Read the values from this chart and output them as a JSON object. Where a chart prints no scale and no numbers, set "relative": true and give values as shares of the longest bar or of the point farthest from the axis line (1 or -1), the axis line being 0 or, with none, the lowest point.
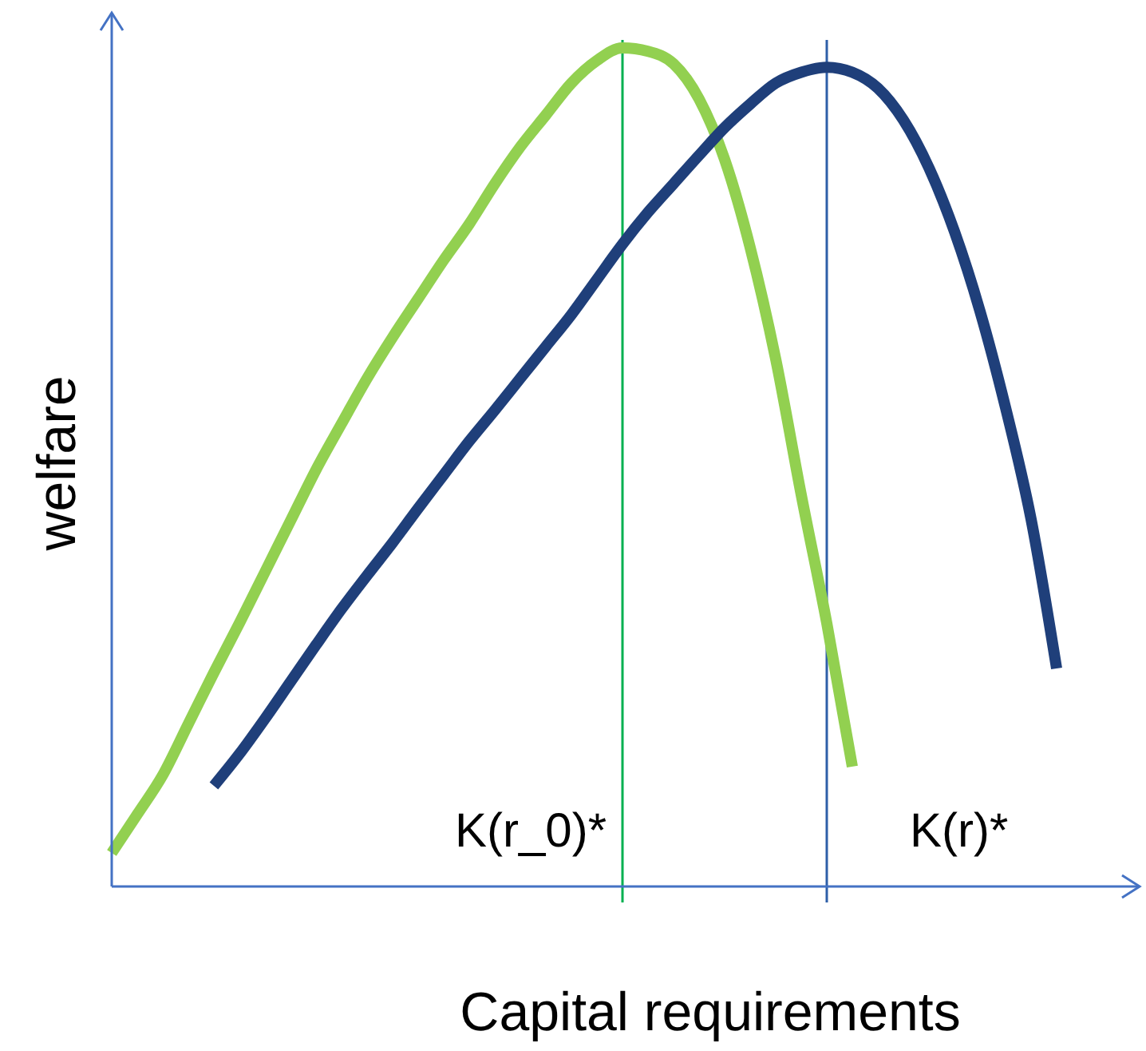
{
  "chart_data": {
    "type": "line",
    "relative": true,
    "xlabel": "Capital requirements",
    "ylabel": "welfare",
    "line_style": "solid",
    "categories": [
      null,
      null,
      null,
      null,
      null,
      null,
      null,
      null,
      null,
      null,
      null,
      null,
      null,
      null,
      null,
      null,
      null,
      null,
      null,
      null,
      null,
      null,
      null,
      null,
      null,
      null,
      null,
      null,
      null,
      null,
      null,
      null,
      null,
      null,
      null,
      null,
      null,
      null,
      null,
      null,
      null
    ],
    "series": [
      {
        "color": "#92d050",
        "values": [
          0.04,
          0.086,
          0.133,
          0.194,
          0.255,
          0.314,
          0.375,
          0.436,
          0.497,
          0.552,
          0.606,
          0.655,
          0.701,
          0.747,
          0.79,
          0.838,
          0.882,
          0.92,
          0.958,
          0.985,
          1,
          0.996,
          0.981,
          0.939,
          0.867,
          0.762,
          0.629,
          0.467,
          0.314,
          0.143,
          null,
          null,
          null,
          null,
          null,
          null,
          null,
          null,
          null,
          null,
          null
        ]
      },
      {
        "color": "#1f3f7a",
        "values": [
          null,
          null,
          null,
          null,
          0.12,
          0.158,
          0.2,
          0.244,
          0.288,
          0.331,
          0.371,
          0.41,
          0.451,
          0.491,
          0.531,
          0.568,
          0.606,
          0.644,
          0.682,
          0.724,
          0.766,
          0.804,
          0.838,
          0.872,
          0.905,
          0.933,
          0.958,
          0.971,
          0.977,
          0.971,
          0.952,
          0.914,
          0.857,
          0.781,
          0.686,
          0.571,
          0.438,
          0.26,
          null,
          null,
          null
        ]
      }
    ],
    "annotations": [
      "K(r_0)*",
      "K(r)*"
    ]
  }
}
